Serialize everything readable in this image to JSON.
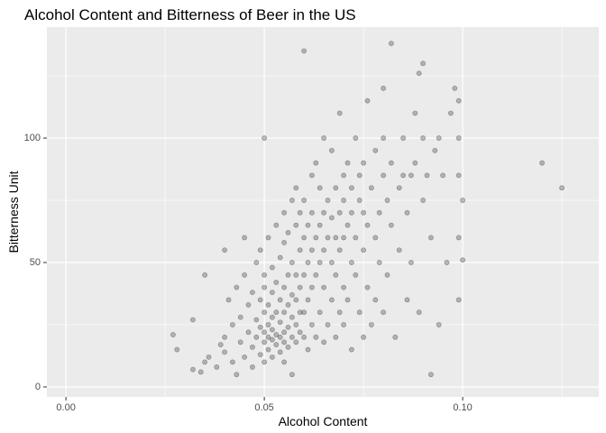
{
  "chart_data": {
    "type": "scatter",
    "title": "Alcohol Content and Bitterness of Beer in the US",
    "x_label": "Alcohol Content",
    "y_label": "Bitterness Unit",
    "color": "#000000",
    "opacity": 0.25,
    "panel_color": "#ebebeb",
    "grid": true,
    "xlim": [
      -0.0048,
      0.1343
    ],
    "ylim": [
      -4,
      144.6
    ],
    "xticks": [
      {
        "value": 0,
        "label": "0.00"
      },
      {
        "value": 0.05,
        "label": "0.05"
      },
      {
        "value": 0.1,
        "label": "0.10"
      }
    ],
    "yticks": [
      0,
      50,
      100
    ],
    "x_minor_grid": [
      0.025,
      0.075,
      0.125
    ],
    "y_minor_grid": [
      25,
      75,
      125
    ],
    "x": [
      0.027,
      0.028,
      0.032,
      0.032,
      0.034,
      0.035,
      0.035,
      0.036,
      0.038,
      0.039,
      0.04,
      0.04,
      0.04,
      0.041,
      0.042,
      0.042,
      0.043,
      0.043,
      0.044,
      0.044,
      0.045,
      0.045,
      0.045,
      0.046,
      0.046,
      0.047,
      0.047,
      0.047,
      0.048,
      0.048,
      0.048,
      0.049,
      0.049,
      0.049,
      0.049,
      0.05,
      0.05,
      0.05,
      0.05,
      0.05,
      0.05,
      0.05,
      0.051,
      0.051,
      0.051,
      0.051,
      0.051,
      0.052,
      0.052,
      0.052,
      0.052,
      0.052,
      0.052,
      0.053,
      0.053,
      0.053,
      0.053,
      0.053,
      0.054,
      0.054,
      0.054,
      0.054,
      0.054,
      0.055,
      0.055,
      0.055,
      0.055,
      0.055,
      0.055,
      0.055,
      0.056,
      0.056,
      0.056,
      0.056,
      0.056,
      0.057,
      0.057,
      0.057,
      0.057,
      0.057,
      0.057,
      0.058,
      0.058,
      0.058,
      0.058,
      0.058,
      0.058,
      0.059,
      0.059,
      0.059,
      0.059,
      0.059,
      0.06,
      0.06,
      0.06,
      0.06,
      0.06,
      0.06,
      0.061,
      0.061,
      0.061,
      0.061,
      0.062,
      0.062,
      0.062,
      0.062,
      0.062,
      0.063,
      0.063,
      0.063,
      0.063,
      0.064,
      0.064,
      0.064,
      0.064,
      0.065,
      0.065,
      0.065,
      0.065,
      0.065,
      0.066,
      0.066,
      0.066,
      0.067,
      0.067,
      0.067,
      0.067,
      0.068,
      0.068,
      0.068,
      0.068,
      0.069,
      0.069,
      0.069,
      0.069,
      0.07,
      0.07,
      0.07,
      0.07,
      0.07,
      0.071,
      0.071,
      0.071,
      0.072,
      0.072,
      0.072,
      0.072,
      0.073,
      0.073,
      0.073,
      0.074,
      0.074,
      0.074,
      0.075,
      0.075,
      0.075,
      0.075,
      0.076,
      0.076,
      0.076,
      0.077,
      0.077,
      0.078,
      0.078,
      0.078,
      0.079,
      0.079,
      0.08,
      0.08,
      0.08,
      0.08,
      0.081,
      0.081,
      0.082,
      0.082,
      0.082,
      0.083,
      0.084,
      0.084,
      0.085,
      0.085,
      0.086,
      0.086,
      0.087,
      0.087,
      0.088,
      0.088,
      0.089,
      0.089,
      0.09,
      0.09,
      0.09,
      0.091,
      0.092,
      0.092,
      0.093,
      0.094,
      0.094,
      0.095,
      0.096,
      0.097,
      0.098,
      0.099,
      0.099,
      0.099,
      0.099,
      0.099,
      0.1,
      0.1,
      0.12,
      0.125
    ],
    "y": [
      21,
      15,
      27,
      7,
      6,
      10,
      45,
      12,
      8,
      17,
      20,
      14,
      55,
      35,
      10,
      25,
      40,
      5,
      18,
      28,
      12,
      45,
      60,
      22,
      33,
      8,
      16,
      38,
      20,
      27,
      50,
      13,
      24,
      35,
      55,
      10,
      18,
      22,
      30,
      40,
      45,
      100,
      15,
      20,
      25,
      33,
      60,
      12,
      19,
      23,
      28,
      38,
      48,
      17,
      21,
      30,
      42,
      65,
      14,
      20,
      26,
      35,
      52,
      10,
      18,
      22,
      30,
      40,
      58,
      70,
      16,
      24,
      33,
      45,
      62,
      5,
      20,
      28,
      37,
      50,
      75,
      18,
      25,
      35,
      45,
      65,
      80,
      22,
      30,
      40,
      55,
      70,
      20,
      30,
      45,
      60,
      75,
      135,
      15,
      35,
      50,
      65,
      25,
      40,
      55,
      70,
      85,
      20,
      45,
      60,
      90,
      30,
      50,
      65,
      80,
      18,
      40,
      55,
      70,
      100,
      25,
      60,
      75,
      35,
      50,
      68,
      95,
      20,
      45,
      60,
      80,
      30,
      55,
      70,
      110,
      25,
      40,
      60,
      75,
      85,
      35,
      65,
      90,
      15,
      50,
      70,
      80,
      45,
      60,
      100,
      30,
      75,
      85,
      20,
      55,
      70,
      90,
      40,
      65,
      115,
      25,
      80,
      35,
      60,
      95,
      50,
      70,
      30,
      85,
      100,
      120,
      45,
      75,
      138,
      65,
      90,
      20,
      55,
      80,
      100,
      85,
      35,
      70,
      85,
      50,
      110,
      90,
      126,
      30,
      130,
      75,
      100,
      85,
      5,
      60,
      95,
      25,
      100,
      85,
      50,
      110,
      120,
      100,
      85,
      60,
      35,
      115,
      51,
      75,
      90,
      80
    ]
  }
}
